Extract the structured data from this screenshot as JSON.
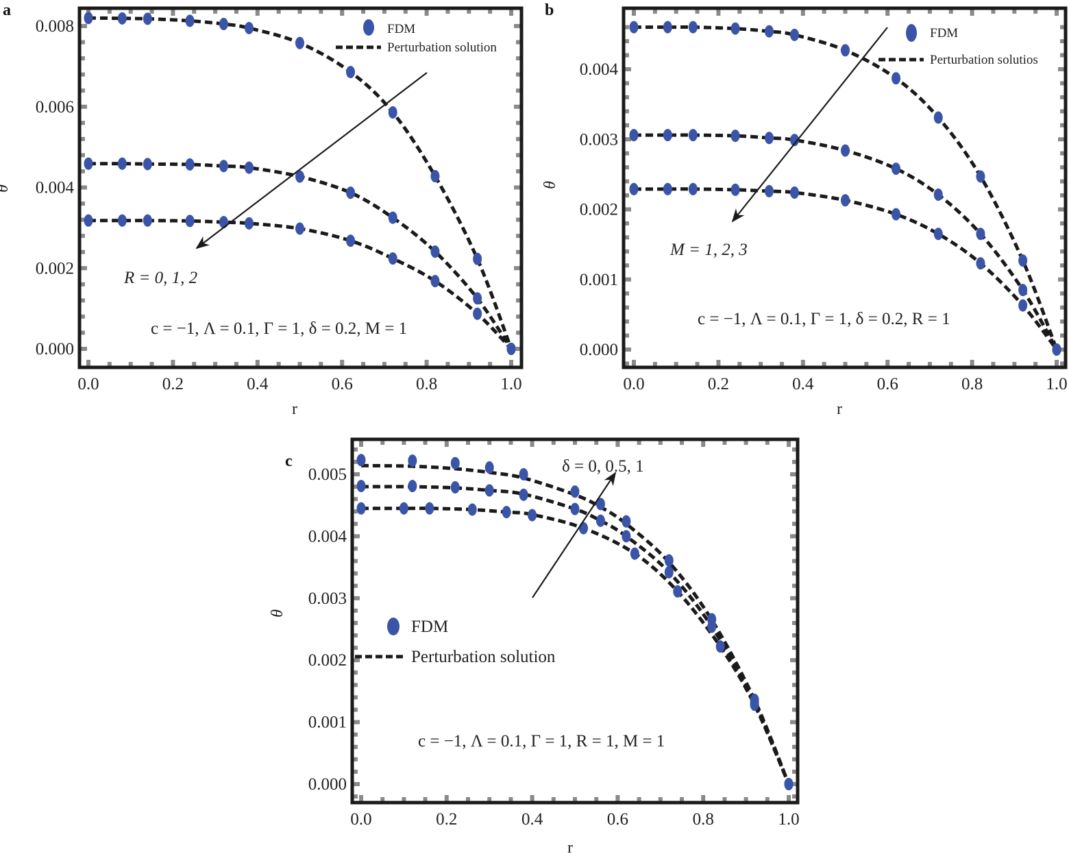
{
  "colors": {
    "marker": "#3a55a8",
    "curve": "#1a1a1a",
    "frame": "#1a1a1a",
    "tick": "#8a8a8a"
  },
  "chart_data": [
    {
      "panel": "a",
      "type": "line",
      "title": "",
      "xlabel": "r",
      "ylabel": "θ",
      "xlim": [
        0,
        1.0
      ],
      "ylim": [
        -0.0005,
        0.0086
      ],
      "xticks": [
        "0.0",
        "0.2",
        "0.4",
        "0.6",
        "0.8",
        "1.0"
      ],
      "yticks": [
        "0.000",
        "0.002",
        "0.004",
        "0.006",
        "0.008"
      ],
      "legend": {
        "position": "upper right",
        "entries": [
          "FDM",
          "Perturbation solution"
        ]
      },
      "annotations": [
        "R = 0, 1, 2",
        "c = −1, Λ = 0.1, Γ = 1, δ = 0.2, M = 1"
      ],
      "arrow": {
        "from": [
          0.8,
          0.007
        ],
        "to": [
          0.25,
          0.0025
        ],
        "label": "R = 0, 1, 2"
      },
      "x": [
        0,
        0.08,
        0.14,
        0.24,
        0.32,
        0.38,
        0.5,
        0.62,
        0.72,
        0.82,
        0.92,
        1.0
      ],
      "series": [
        {
          "name": "R = 0",
          "values": [
            0.0082,
            0.00819,
            0.00818,
            0.00813,
            0.00805,
            0.00795,
            0.00758,
            0.00686,
            0.00586,
            0.00428,
            0.00223,
            0.0
          ]
        },
        {
          "name": "R = 1",
          "values": [
            0.00459,
            0.00459,
            0.00458,
            0.00457,
            0.00453,
            0.00449,
            0.00427,
            0.00387,
            0.00325,
            0.00241,
            0.00125,
            0.0
          ]
        },
        {
          "name": "R = 2",
          "values": [
            0.00318,
            0.00318,
            0.00318,
            0.00317,
            0.00314,
            0.00311,
            0.00298,
            0.00268,
            0.00224,
            0.00168,
            0.00087,
            0.0
          ]
        }
      ]
    },
    {
      "panel": "b",
      "type": "line",
      "title": "",
      "xlabel": "r",
      "ylabel": "θ",
      "xlim": [
        0,
        1.0
      ],
      "ylim": [
        -0.00026,
        0.0047
      ],
      "xticks": [
        "0.0",
        "0.2",
        "0.4",
        "0.6",
        "0.8",
        "1.0"
      ],
      "yticks": [
        "0.000",
        "0.001",
        "0.002",
        "0.003",
        "0.004"
      ],
      "legend": {
        "position": "upper right",
        "entries": [
          "FDM",
          "Perturbation solutios"
        ]
      },
      "annotations": [
        "M = 1, 2, 3",
        "c = −1, Λ = 0.1, Γ = 1, δ = 0.2, R = 1"
      ],
      "arrow": {
        "from": [
          0.6,
          0.0046
        ],
        "to": [
          0.24,
          0.0018
        ],
        "label": "M = 1, 2, 3"
      },
      "x": [
        0,
        0.08,
        0.14,
        0.24,
        0.32,
        0.38,
        0.5,
        0.62,
        0.72,
        0.82,
        0.92,
        1.0
      ],
      "series": [
        {
          "name": "M = 1",
          "values": [
            0.0046,
            0.0046,
            0.0046,
            0.00458,
            0.00454,
            0.00449,
            0.00427,
            0.00387,
            0.00331,
            0.00247,
            0.00127,
            0.0
          ]
        },
        {
          "name": "M = 2",
          "values": [
            0.00306,
            0.00306,
            0.00306,
            0.00305,
            0.00302,
            0.00299,
            0.00284,
            0.00258,
            0.00221,
            0.00165,
            0.00085,
            0.0
          ]
        },
        {
          "name": "M = 3",
          "values": [
            0.00229,
            0.00229,
            0.00229,
            0.00228,
            0.00226,
            0.00224,
            0.00213,
            0.00193,
            0.00165,
            0.00123,
            0.00063,
            0.0
          ]
        }
      ]
    },
    {
      "panel": "c",
      "type": "line",
      "title": "",
      "xlabel": "r",
      "ylabel": "θ",
      "xlim": [
        0,
        1.0
      ],
      "ylim": [
        -0.0003,
        0.0055
      ],
      "xticks": [
        "0.0",
        "0.2",
        "0.4",
        "0.6",
        "0.8",
        "1.0"
      ],
      "yticks": [
        "0.000",
        "0.001",
        "0.002",
        "0.003",
        "0.004",
        "0.005"
      ],
      "legend": {
        "position": "center left",
        "entries": [
          "FDM",
          "Perturbation solution"
        ]
      },
      "annotations": [
        "δ = 0, 0.5, 1",
        "c = −1, Λ = 0.1, Γ = 1, R = 1, M = 1"
      ],
      "arrow": {
        "from": [
          0.4,
          0.003
        ],
        "to": [
          0.6,
          0.005
        ],
        "label": "δ = 0, 0.5, 1"
      },
      "series": [
        {
          "name": "δ = 0",
          "x": [
            0,
            0.1,
            0.16,
            0.26,
            0.34,
            0.4,
            0.52,
            0.64,
            0.74,
            0.84,
            0.92,
            1.0
          ],
          "values": [
            0.00445,
            0.00445,
            0.00445,
            0.00443,
            0.00439,
            0.00435,
            0.00413,
            0.00372,
            0.00311,
            0.00222,
            0.00128,
            0.0
          ],
          "fdm_values": [
            0.00445,
            0.00445,
            0.00445,
            0.00443,
            0.00439,
            0.00434,
            0.00413,
            0.00372,
            0.00311,
            0.00222,
            0.00128,
            0.0
          ]
        },
        {
          "name": "δ = 0.5",
          "x": [
            0,
            0.12,
            0.22,
            0.3,
            0.38,
            0.5,
            0.56,
            0.62,
            0.72,
            0.82,
            0.92,
            1.0
          ],
          "values": [
            0.0048,
            0.0048,
            0.00478,
            0.00474,
            0.00468,
            0.00444,
            0.00425,
            0.004,
            0.00342,
            0.00254,
            0.00131,
            0.0
          ],
          "fdm_values": [
            0.00481,
            0.00481,
            0.00479,
            0.00474,
            0.00467,
            0.00444,
            0.00425,
            0.004,
            0.00342,
            0.00254,
            0.00131,
            0.0
          ]
        },
        {
          "name": "δ = 1",
          "x": [
            0,
            0.12,
            0.22,
            0.3,
            0.38,
            0.5,
            0.56,
            0.62,
            0.72,
            0.82,
            0.92,
            1.0
          ],
          "values": [
            0.00514,
            0.00513,
            0.00509,
            0.00503,
            0.00494,
            0.00467,
            0.00447,
            0.0042,
            0.00358,
            0.00265,
            0.00136,
            0.0
          ],
          "fdm_values": [
            0.00523,
            0.00522,
            0.00518,
            0.00511,
            0.005,
            0.00472,
            0.00452,
            0.00424,
            0.00361,
            0.00266,
            0.00136,
            0.0
          ]
        }
      ]
    }
  ],
  "panels": {
    "a": {
      "label": "a",
      "xlabel": "r",
      "ylabel": "θ",
      "legend_fdm": "FDM",
      "legend_pert": "Perturbation solution",
      "arrow_label": "R = 0, 1, 2",
      "params": "c = −1, Λ = 0.1, Γ = 1, δ = 0.2, M = 1"
    },
    "b": {
      "label": "b",
      "xlabel": "r",
      "ylabel": "θ",
      "legend_fdm": "FDM",
      "legend_pert": "Perturbation solutios",
      "arrow_label": "M = 1, 2, 3",
      "params": "c = −1, Λ = 0.1, Γ = 1, δ = 0.2, R = 1"
    },
    "c": {
      "label": "c",
      "xlabel": "r",
      "ylabel": "θ",
      "legend_fdm": "FDM",
      "legend_pert": "Perturbation solution",
      "arrow_label": "δ = 0, 0.5, 1",
      "params": "c = −1, Λ = 0.1, Γ = 1, R = 1, M = 1"
    }
  }
}
